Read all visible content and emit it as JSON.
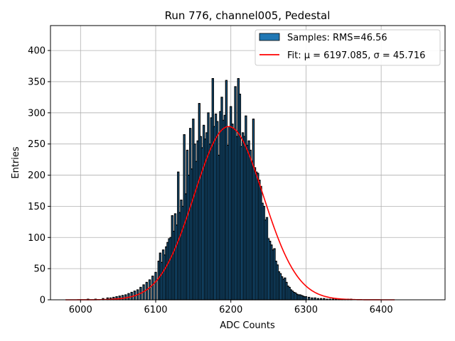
{
  "chart_data": {
    "type": "bar",
    "title": "Run 776, channel005, Pedestal",
    "xlabel": "ADC Counts",
    "ylabel": "Entries",
    "xlim": [
      5960,
      6485
    ],
    "ylim": [
      0,
      440
    ],
    "xticks": [
      6000,
      6100,
      6200,
      6300,
      6400
    ],
    "yticks": [
      0,
      50,
      100,
      150,
      200,
      250,
      300,
      350,
      400
    ],
    "grid": true,
    "legend_position": "top-right",
    "series": [
      {
        "name": "Samples: RMS=46.56",
        "kind": "histogram",
        "color": "#1f77b4",
        "edge_color": "#000000",
        "bin_width": 2,
        "x": [
          6010,
          6020,
          6030,
          6036,
          6040,
          6044,
          6048,
          6052,
          6056,
          6060,
          6064,
          6068,
          6072,
          6076,
          6080,
          6084,
          6088,
          6092,
          6096,
          6100,
          6104,
          6106,
          6108,
          6110,
          6112,
          6114,
          6116,
          6118,
          6120,
          6122,
          6124,
          6126,
          6128,
          6130,
          6132,
          6134,
          6136,
          6138,
          6140,
          6142,
          6144,
          6146,
          6148,
          6150,
          6152,
          6154,
          6156,
          6158,
          6160,
          6162,
          6164,
          6166,
          6168,
          6170,
          6172,
          6174,
          6176,
          6178,
          6180,
          6182,
          6184,
          6186,
          6188,
          6190,
          6192,
          6194,
          6196,
          6198,
          6200,
          6202,
          6204,
          6206,
          6208,
          6210,
          6212,
          6214,
          6216,
          6218,
          6220,
          6222,
          6224,
          6226,
          6228,
          6230,
          6232,
          6234,
          6236,
          6238,
          6240,
          6242,
          6244,
          6246,
          6248,
          6250,
          6252,
          6254,
          6256,
          6258,
          6260,
          6262,
          6264,
          6266,
          6268,
          6270,
          6272,
          6274,
          6276,
          6278,
          6280,
          6282,
          6284,
          6286,
          6288,
          6290,
          6292,
          6294,
          6296,
          6298,
          6300,
          6304,
          6308,
          6312,
          6316,
          6320,
          6324,
          6328,
          6332,
          6336,
          6340,
          6344,
          6348,
          6352,
          6356,
          6360,
          6368,
          6376,
          6384,
          6392,
          6400
        ],
        "values": [
          1,
          1,
          2,
          3,
          3,
          4,
          5,
          6,
          7,
          8,
          10,
          12,
          14,
          16,
          20,
          24,
          28,
          32,
          38,
          44,
          62,
          75,
          60,
          80,
          72,
          85,
          92,
          98,
          100,
          135,
          110,
          138,
          120,
          205,
          140,
          160,
          150,
          265,
          170,
          240,
          200,
          275,
          210,
          290,
          250,
          222,
          255,
          315,
          262,
          244,
          280,
          258,
          268,
          300,
          250,
          292,
          355,
          278,
          298,
          286,
          232,
          302,
          325,
          288,
          296,
          352,
          248,
          278,
          310,
          282,
          275,
          342,
          262,
          355,
          330,
          246,
          268,
          262,
          295,
          248,
          255,
          240,
          222,
          290,
          212,
          205,
          203,
          192,
          182,
          155,
          150,
          128,
          132,
          98,
          94,
          88,
          80,
          82,
          62,
          56,
          45,
          42,
          37,
          33,
          35,
          28,
          22,
          20,
          16,
          14,
          12,
          11,
          9,
          8,
          8,
          7,
          6,
          5,
          5,
          4,
          3,
          3,
          2,
          2,
          2,
          1,
          1,
          1,
          1,
          1,
          1,
          1,
          1,
          1,
          0,
          0,
          0,
          0
        ]
      },
      {
        "name": "Fit: μ = 6197.085, σ = 45.716",
        "kind": "gaussian",
        "color": "#ff0000",
        "mu": 6197.085,
        "sigma": 45.716,
        "amplitude": 278,
        "x_range": [
          5980,
          6418
        ]
      }
    ]
  }
}
